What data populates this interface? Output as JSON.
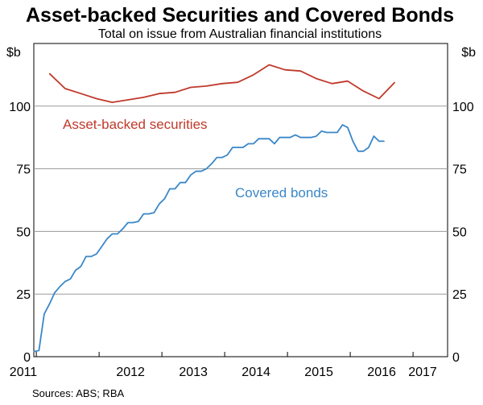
{
  "chart_data": {
    "type": "line",
    "title": "Asset-backed Securities and Covered Bonds",
    "subtitle": "Total on issue from Australian financial institutions",
    "y_unit": "$b",
    "ylim": [
      0,
      125
    ],
    "y_ticks": [
      0,
      25,
      50,
      75,
      100
    ],
    "x_ticks": [
      "2011",
      "2012",
      "2013",
      "2014",
      "2015",
      "2016",
      "2017"
    ],
    "grid": true,
    "source": "Sources: ABS; RBA",
    "series": [
      {
        "name": "Asset-backed securities",
        "color": "#c0392b",
        "points": [
          [
            "2011-03",
            113
          ],
          [
            "2011-06",
            107
          ],
          [
            "2011-09",
            105
          ],
          [
            "2011-12",
            103
          ],
          [
            "2012-03",
            101.5
          ],
          [
            "2012-06",
            102.5
          ],
          [
            "2012-09",
            103.5
          ],
          [
            "2012-12",
            105
          ],
          [
            "2013-03",
            105.5
          ],
          [
            "2013-06",
            107.5
          ],
          [
            "2013-09",
            108
          ],
          [
            "2013-12",
            109
          ],
          [
            "2014-03",
            109.5
          ],
          [
            "2014-06",
            112.5
          ],
          [
            "2014-09",
            116.5
          ],
          [
            "2014-12",
            114.5
          ],
          [
            "2015-03",
            114
          ],
          [
            "2015-06",
            111
          ],
          [
            "2015-09",
            109
          ],
          [
            "2015-12",
            110
          ],
          [
            "2016-03",
            106
          ],
          [
            "2016-06",
            103
          ],
          [
            "2016-09",
            109.5
          ]
        ]
      },
      {
        "name": "Covered bonds",
        "color": "#3a87c8",
        "points": [
          [
            "2010-12",
            2
          ],
          [
            "2011-01",
            2.5
          ],
          [
            "2011-02",
            17
          ],
          [
            "2011-03",
            21
          ],
          [
            "2011-04",
            25.5
          ],
          [
            "2011-05",
            28
          ],
          [
            "2011-06",
            30
          ],
          [
            "2011-07",
            31
          ],
          [
            "2011-08",
            34.5
          ],
          [
            "2011-09",
            36
          ],
          [
            "2011-10",
            40
          ],
          [
            "2011-11",
            40
          ],
          [
            "2011-12",
            41
          ],
          [
            "2012-01",
            44
          ],
          [
            "2012-02",
            47
          ],
          [
            "2012-03",
            49
          ],
          [
            "2012-04",
            49
          ],
          [
            "2012-05",
            51
          ],
          [
            "2012-06",
            53.5
          ],
          [
            "2012-07",
            53.5
          ],
          [
            "2012-08",
            54
          ],
          [
            "2012-09",
            57
          ],
          [
            "2012-10",
            57
          ],
          [
            "2012-11",
            57.5
          ],
          [
            "2012-12",
            61
          ],
          [
            "2013-01",
            63
          ],
          [
            "2013-02",
            67
          ],
          [
            "2013-03",
            67
          ],
          [
            "2013-04",
            69.5
          ],
          [
            "2013-05",
            69.5
          ],
          [
            "2013-06",
            72.5
          ],
          [
            "2013-07",
            74
          ],
          [
            "2013-08",
            74
          ],
          [
            "2013-09",
            75
          ],
          [
            "2013-10",
            77
          ],
          [
            "2013-11",
            79.5
          ],
          [
            "2013-12",
            79.5
          ],
          [
            "2014-01",
            80.5
          ],
          [
            "2014-02",
            83.5
          ],
          [
            "2014-03",
            83.5
          ],
          [
            "2014-04",
            83.5
          ],
          [
            "2014-05",
            85
          ],
          [
            "2014-06",
            85
          ],
          [
            "2014-07",
            87
          ],
          [
            "2014-08",
            87
          ],
          [
            "2014-09",
            87
          ],
          [
            "2014-10",
            85
          ],
          [
            "2014-11",
            87.5
          ],
          [
            "2014-12",
            87.5
          ],
          [
            "2015-01",
            87.5
          ],
          [
            "2015-02",
            88.5
          ],
          [
            "2015-03",
            87.5
          ],
          [
            "2015-04",
            87.5
          ],
          [
            "2015-05",
            87.5
          ],
          [
            "2015-06",
            88
          ],
          [
            "2015-07",
            90
          ],
          [
            "2015-08",
            89.5
          ],
          [
            "2015-09",
            89.5
          ],
          [
            "2015-10",
            89.5
          ],
          [
            "2015-11",
            92.5
          ],
          [
            "2015-12",
            91.5
          ],
          [
            "2016-01",
            86
          ],
          [
            "2016-02",
            82
          ],
          [
            "2016-03",
            82
          ],
          [
            "2016-04",
            83.5
          ],
          [
            "2016-05",
            88
          ],
          [
            "2016-06",
            86
          ],
          [
            "2016-07",
            86
          ]
        ]
      }
    ],
    "annotations": [
      "Asset-backed securities",
      "Covered bonds"
    ]
  }
}
